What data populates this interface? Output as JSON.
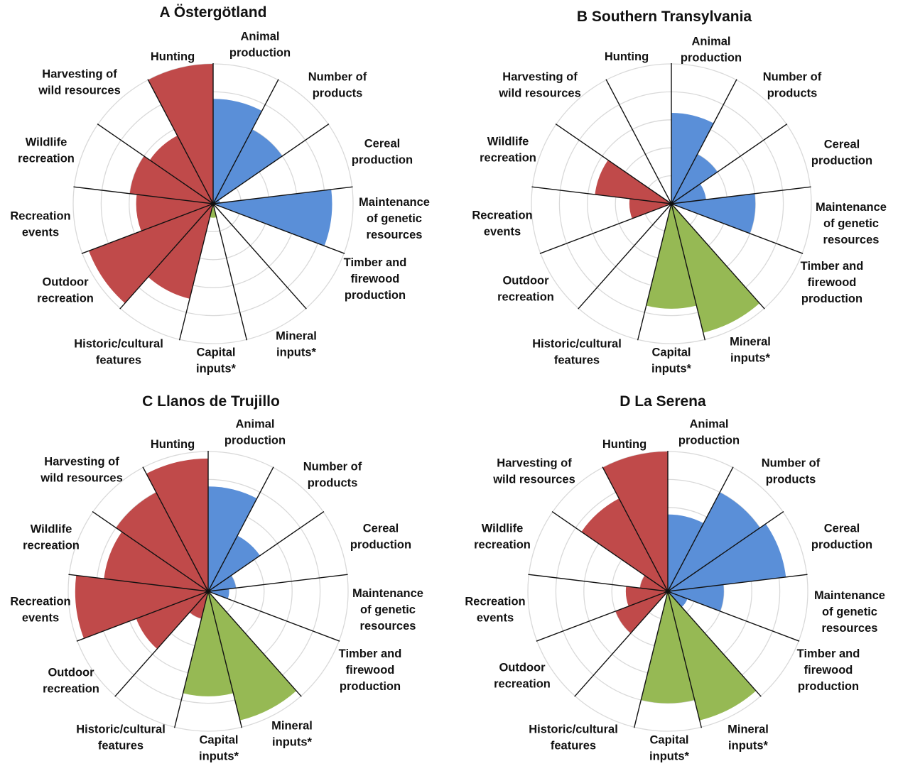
{
  "chart_data": [
    {
      "type": "polar-area",
      "title": "A  Östergötland",
      "categories": [
        "Animal production",
        "Number of products",
        "Cereal production",
        "Maintenance of genetic resources",
        "Timber and firewood production",
        "Mineral inputs*",
        "Capital inputs*",
        "Historic/cultural features",
        "Outdoor recreation",
        "Recreation events",
        "Wildlife recreation",
        "Harvesting of wild resources",
        "Hunting"
      ],
      "category_groups": [
        "provisioning",
        "provisioning",
        "provisioning",
        "provisioning",
        "provisioning",
        "input",
        "input",
        "cultural",
        "cultural",
        "cultural",
        "cultural",
        "cultural",
        "cultural"
      ],
      "values": [
        0.75,
        0.6,
        0.05,
        0.85,
        0,
        0,
        0.1,
        0.7,
        0.95,
        0.55,
        0.6,
        0.55,
        1.0
      ],
      "rmax": 1.0,
      "rings": [
        0.2,
        0.4,
        0.6,
        0.8,
        1.0
      ],
      "grid": true
    },
    {
      "type": "polar-area",
      "title": "B  Southern Transylvania",
      "categories": [
        "Animal production",
        "Number of products",
        "Cereal production",
        "Maintenance of genetic resources",
        "Timber and firewood production",
        "Mineral inputs*",
        "Capital inputs*",
        "Historic/cultural features",
        "Outdoor recreation",
        "Recreation events",
        "Wildlife recreation",
        "Harvesting of wild resources",
        "Hunting"
      ],
      "category_groups": [
        "provisioning",
        "provisioning",
        "provisioning",
        "provisioning",
        "provisioning",
        "input",
        "input",
        "cultural",
        "cultural",
        "cultural",
        "cultural",
        "cultural",
        "cultural"
      ],
      "values": [
        0.65,
        0.4,
        0.25,
        0.6,
        0,
        0.95,
        0.75,
        0,
        0,
        0.3,
        0.55,
        0,
        0
      ],
      "rmax": 1.0,
      "rings": [
        0.2,
        0.4,
        0.6,
        0.8,
        1.0
      ],
      "grid": true
    },
    {
      "type": "polar-area",
      "title": "C  Llanos de Trujillo",
      "categories": [
        "Animal production",
        "Number of products",
        "Cereal production",
        "Maintenance of genetic resources",
        "Timber and firewood production",
        "Mineral inputs*",
        "Capital inputs*",
        "Historic/cultural features",
        "Outdoor recreation",
        "Recreation events",
        "Wildlife recreation",
        "Harvesting of wild resources",
        "Hunting"
      ],
      "category_groups": [
        "provisioning",
        "provisioning",
        "provisioning",
        "provisioning",
        "provisioning",
        "input",
        "input",
        "cultural",
        "cultural",
        "cultural",
        "cultural",
        "cultural",
        "cultural"
      ],
      "values": [
        0.75,
        0.45,
        0.2,
        0.15,
        0,
        0.95,
        0.75,
        0.2,
        0.55,
        0.95,
        0.75,
        0.8,
        0.95
      ],
      "rmax": 1.0,
      "rings": [
        0.2,
        0.4,
        0.6,
        0.8,
        1.0
      ],
      "grid": true
    },
    {
      "type": "polar-area",
      "title": "D  La Serena",
      "categories": [
        "Animal production",
        "Number of products",
        "Cereal production",
        "Maintenance of genetic resources",
        "Timber and firewood production",
        "Mineral inputs*",
        "Capital inputs*",
        "Historic/cultural features",
        "Outdoor recreation",
        "Recreation events",
        "Wildlife recreation",
        "Harvesting of wild resources",
        "Hunting"
      ],
      "category_groups": [
        "provisioning",
        "provisioning",
        "provisioning",
        "provisioning",
        "provisioning",
        "input",
        "input",
        "cultural",
        "cultural",
        "cultural",
        "cultural",
        "cultural",
        "cultural"
      ],
      "values": [
        0.55,
        0.8,
        0.85,
        0.4,
        0.15,
        0.95,
        0.8,
        0,
        0.4,
        0.3,
        0.2,
        0.75,
        1.0
      ],
      "rmax": 1.0,
      "rings": [
        0.2,
        0.4,
        0.6,
        0.8,
        1.0
      ],
      "grid": true
    }
  ],
  "colors": {
    "provisioning": "#5a8fd8",
    "input": "#96b954",
    "cultural": "#c04a4a",
    "grid": "#d9d9d9",
    "spoke": "#111111"
  }
}
